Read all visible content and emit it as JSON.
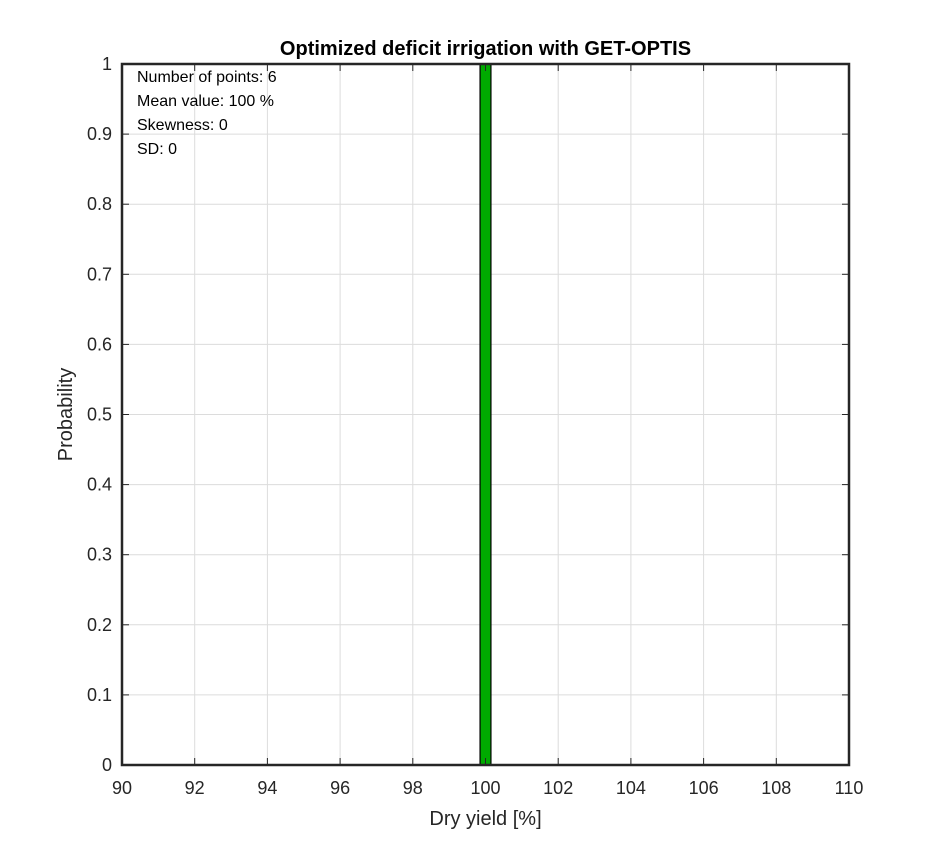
{
  "chart_data": {
    "type": "bar",
    "title": "Optimized deficit irrigation with GET-OPTIS",
    "xlabel": "Dry yield [%]",
    "ylabel": "Probability",
    "xlim": [
      90,
      110
    ],
    "ylim": [
      0,
      1
    ],
    "x_ticks": [
      "90",
      "92",
      "94",
      "96",
      "98",
      "100",
      "102",
      "104",
      "106",
      "108",
      "110"
    ],
    "y_ticks": [
      "0",
      "0.1",
      "0.2",
      "0.3",
      "0.4",
      "0.5",
      "0.6",
      "0.7",
      "0.8",
      "0.9",
      "1"
    ],
    "x_tick_values": [
      90,
      92,
      94,
      96,
      98,
      100,
      102,
      104,
      106,
      108,
      110
    ],
    "y_tick_values": [
      0,
      0.1,
      0.2,
      0.3,
      0.4,
      0.5,
      0.6,
      0.7,
      0.8,
      0.9,
      1
    ],
    "bars": [
      {
        "x_start": 99.85,
        "x_end": 100.15,
        "value": 1.0
      }
    ],
    "bar_color": "#00AA00",
    "grid": true,
    "annotations": [
      "Number of points: 6",
      "Mean value: 100 %",
      "Skewness: 0",
      "SD: 0"
    ]
  }
}
